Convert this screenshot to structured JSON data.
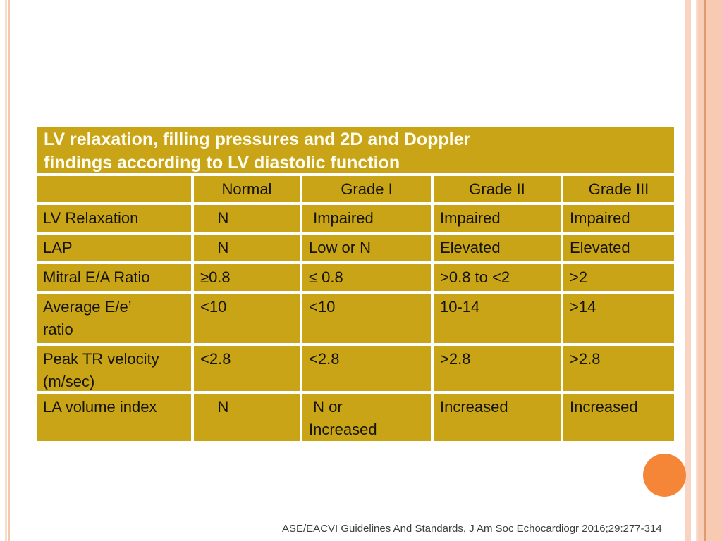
{
  "slide": {
    "colors": {
      "table_fill": "#C8A416",
      "title_text": "#FFFDF2",
      "body_text": "#151408",
      "border_salmon_light": "#F9D4C2",
      "border_salmon_dark": "#E19A6D",
      "circle_orange": "#F58638"
    },
    "table": {
      "title": "LV relaxation, filling pressures and 2D and Doppler\nfindings according to LV diastolic function",
      "headers": [
        "",
        "Normal",
        "Grade I",
        "Grade II",
        "Grade III"
      ],
      "rows": [
        {
          "label": "LV Relaxation",
          "values": [
            "    N",
            " Impaired",
            "Impaired",
            "Impaired"
          ]
        },
        {
          "label": "LAP",
          "values": [
            "    N",
            "Low or N",
            "Elevated",
            "Elevated"
          ]
        },
        {
          "label": "Mitral E/A Ratio",
          "values": [
            "≥0.8",
            "≤ 0.8",
            ">0.8 to <2",
            ">2"
          ]
        },
        {
          "label": "Average E/e’\nratio",
          "values": [
            "<10",
            "<10",
            "10-14",
            ">14"
          ]
        },
        {
          "label": "Peak TR velocity\n(m/sec)",
          "values": [
            "<2.8",
            "<2.8",
            ">2.8",
            ">2.8"
          ]
        },
        {
          "label": "LA volume index",
          "values": [
            "    N",
            " N or\nIncreased",
            "Increased",
            "Increased"
          ]
        }
      ]
    },
    "footer": {
      "citation": "ASE/EACVI Guidelines And Standards, J Am Soc Echocardiogr 2016;29:277-314"
    }
  }
}
